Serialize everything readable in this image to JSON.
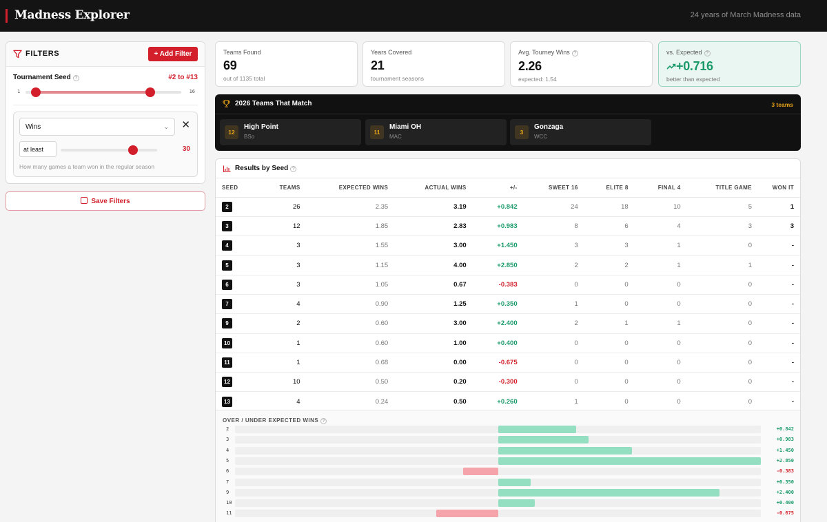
{
  "header": {
    "title": "Madness Explorer",
    "subtitle": "24 years of March Madness data"
  },
  "filters": {
    "title": "FILTERS",
    "add_label": "+ Add Filter",
    "seed": {
      "label": "Tournament Seed",
      "range_text": "#2 to #13",
      "min_label": "1",
      "max_label": "16",
      "min": 1,
      "max": 16,
      "low": 2,
      "high": 13
    },
    "condition": {
      "field": "Wins",
      "operator": "at least",
      "value": "30",
      "slider_fraction": 0.75,
      "help": "How many games a team won in the regular season"
    },
    "save_label": "Save Filters"
  },
  "stats": [
    {
      "label": "Teams Found",
      "value": "69",
      "sub": "out of 1135 total"
    },
    {
      "label": "Years Covered",
      "value": "21",
      "sub": "tournament seasons"
    },
    {
      "label": "Avg. Tourney Wins",
      "value": "2.26",
      "sub": "expected: 1.54"
    },
    {
      "label": "vs. Expected",
      "value": "+0.716",
      "sub": "better than expected"
    }
  ],
  "teams_2026": {
    "title": "2026 Teams That Match",
    "count": "3 teams",
    "teams": [
      {
        "seed": "12",
        "name": "High Point",
        "conf": "BSo"
      },
      {
        "seed": "11",
        "name": "Miami OH",
        "conf": "MAC"
      },
      {
        "seed": "3",
        "name": "Gonzaga",
        "conf": "WCC"
      }
    ]
  },
  "results": {
    "title": "Results by Seed",
    "columns": [
      "SEED",
      "TEAMS",
      "EXPECTED WINS",
      "ACTUAL WINS",
      "+/-",
      "SWEET 16",
      "ELITE 8",
      "FINAL 4",
      "TITLE GAME",
      "WON IT"
    ],
    "rows": [
      {
        "seed": "2",
        "teams": "26",
        "expected": "2.35",
        "actual": "3.19",
        "diff": "+0.842",
        "s16": "24",
        "e8": "18",
        "f4": "10",
        "tg": "5",
        "won": "1"
      },
      {
        "seed": "3",
        "teams": "12",
        "expected": "1.85",
        "actual": "2.83",
        "diff": "+0.983",
        "s16": "8",
        "e8": "6",
        "f4": "4",
        "tg": "3",
        "won": "3"
      },
      {
        "seed": "4",
        "teams": "3",
        "expected": "1.55",
        "actual": "3.00",
        "diff": "+1.450",
        "s16": "3",
        "e8": "3",
        "f4": "1",
        "tg": "0",
        "won": "-"
      },
      {
        "seed": "5",
        "teams": "3",
        "expected": "1.15",
        "actual": "4.00",
        "diff": "+2.850",
        "s16": "2",
        "e8": "2",
        "f4": "1",
        "tg": "1",
        "won": "-"
      },
      {
        "seed": "6",
        "teams": "3",
        "expected": "1.05",
        "actual": "0.67",
        "diff": "-0.383",
        "s16": "0",
        "e8": "0",
        "f4": "0",
        "tg": "0",
        "won": "-"
      },
      {
        "seed": "7",
        "teams": "4",
        "expected": "0.90",
        "actual": "1.25",
        "diff": "+0.350",
        "s16": "1",
        "e8": "0",
        "f4": "0",
        "tg": "0",
        "won": "-"
      },
      {
        "seed": "9",
        "teams": "2",
        "expected": "0.60",
        "actual": "3.00",
        "diff": "+2.400",
        "s16": "2",
        "e8": "1",
        "f4": "1",
        "tg": "0",
        "won": "-"
      },
      {
        "seed": "10",
        "teams": "1",
        "expected": "0.60",
        "actual": "1.00",
        "diff": "+0.400",
        "s16": "0",
        "e8": "0",
        "f4": "0",
        "tg": "0",
        "won": "-"
      },
      {
        "seed": "11",
        "teams": "1",
        "expected": "0.68",
        "actual": "0.00",
        "diff": "-0.675",
        "s16": "0",
        "e8": "0",
        "f4": "0",
        "tg": "0",
        "won": "-"
      },
      {
        "seed": "12",
        "teams": "10",
        "expected": "0.50",
        "actual": "0.20",
        "diff": "-0.300",
        "s16": "0",
        "e8": "0",
        "f4": "0",
        "tg": "0",
        "won": "-"
      },
      {
        "seed": "13",
        "teams": "4",
        "expected": "0.24",
        "actual": "0.50",
        "diff": "+0.260",
        "s16": "1",
        "e8": "0",
        "f4": "0",
        "tg": "0",
        "won": "-"
      }
    ]
  },
  "overunder": {
    "title": "OVER / UNDER EXPECTED WINS",
    "scale_max": 2.85,
    "items": [
      {
        "seed": "2",
        "value": 0.842,
        "label": "+0.842"
      },
      {
        "seed": "3",
        "value": 0.983,
        "label": "+0.983"
      },
      {
        "seed": "4",
        "value": 1.45,
        "label": "+1.450"
      },
      {
        "seed": "5",
        "value": 2.85,
        "label": "+2.850"
      },
      {
        "seed": "6",
        "value": -0.383,
        "label": "-0.383"
      },
      {
        "seed": "7",
        "value": 0.35,
        "label": "+0.350"
      },
      {
        "seed": "9",
        "value": 2.4,
        "label": "+2.400"
      },
      {
        "seed": "10",
        "value": 0.4,
        "label": "+0.400"
      },
      {
        "seed": "11",
        "value": -0.675,
        "label": "-0.675"
      }
    ]
  },
  "colors": {
    "accent": "#d21f2b",
    "positive": "#1a9a6a",
    "positive_bar": "#94dec2",
    "negative_bar": "#f4a4aa",
    "gold": "#e8a317"
  }
}
